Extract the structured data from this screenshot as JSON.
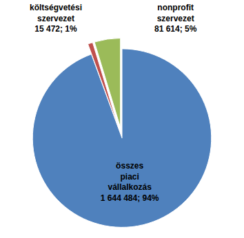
{
  "chart_data": {
    "type": "pie",
    "categories": [
      "összes piaci vállalkozás",
      "költségvetési szervezet",
      "nonprofit szervezet"
    ],
    "values": [
      1644484,
      15472,
      81614
    ],
    "value_labels": [
      "1 644 484; 94%",
      "15 472; 1%",
      "81 614; 5%"
    ],
    "colors": [
      "#4f81bd",
      "#c0504d",
      "#9bbb59"
    ],
    "data_labels": true
  }
}
